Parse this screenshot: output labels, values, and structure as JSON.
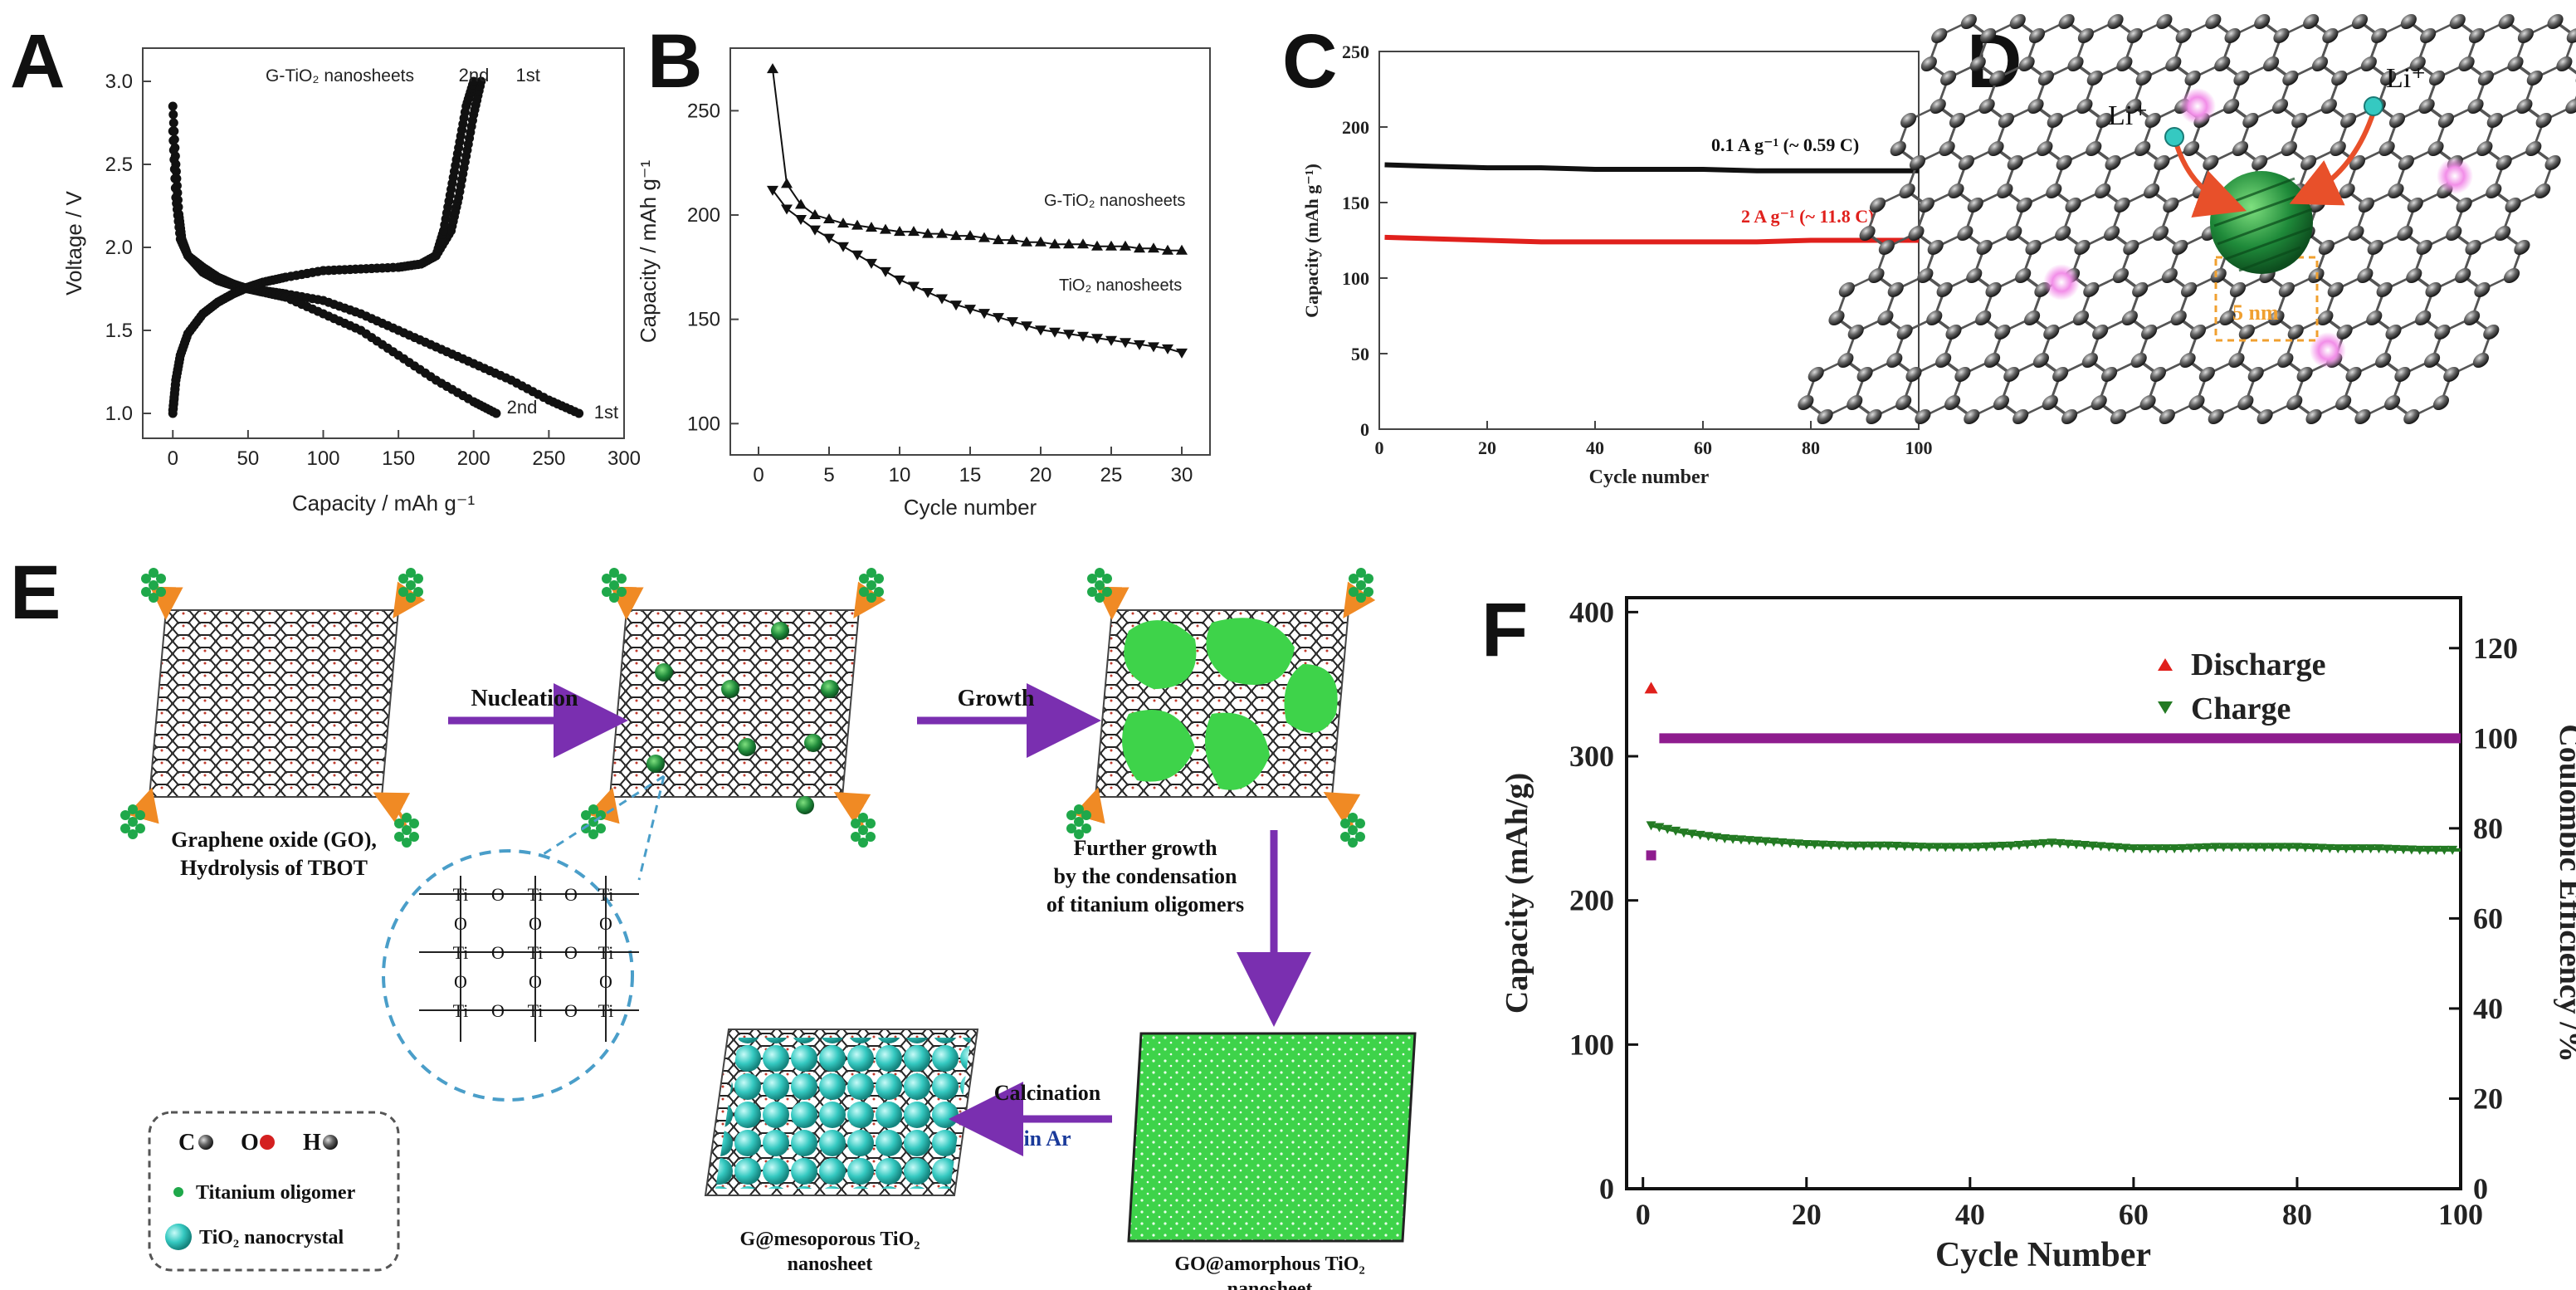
{
  "panels": {
    "A": "A",
    "B": "B",
    "C": "C",
    "D": "D",
    "E": "E",
    "F": "F"
  },
  "chart_data": [
    {
      "id": "A",
      "type": "line",
      "title": "",
      "legend": "G-TiO₂ nanosheets",
      "xlabel": "Capacity / mAh g⁻¹",
      "ylabel": "Voltage / V",
      "xlim": [
        -20,
        300
      ],
      "ylim": [
        0.85,
        3.2
      ],
      "xticks": [
        0,
        50,
        100,
        150,
        200,
        250,
        300
      ],
      "yticks": [
        1.0,
        1.5,
        2.0,
        2.5,
        3.0
      ],
      "ytick_labels": [
        "1.0",
        "1.5",
        "2.0",
        "2.5",
        "3.0"
      ],
      "annotations": [
        {
          "text": "2nd",
          "x": 190,
          "y": 3.0
        },
        {
          "text": "1st",
          "x": 228,
          "y": 3.0
        },
        {
          "text": "2nd",
          "x": 222,
          "y": 1.0
        },
        {
          "text": "1st",
          "x": 280,
          "y": 0.97
        }
      ],
      "series": [
        {
          "name": "1st discharge",
          "x": [
            0,
            2,
            4,
            6,
            10,
            15,
            20,
            30,
            40,
            50,
            60,
            75,
            100,
            125,
            150,
            175,
            200,
            225,
            250,
            270
          ],
          "y": [
            2.85,
            2.5,
            2.2,
            2.05,
            1.95,
            1.9,
            1.85,
            1.8,
            1.77,
            1.75,
            1.74,
            1.72,
            1.68,
            1.6,
            1.5,
            1.4,
            1.3,
            1.2,
            1.08,
            1.0
          ]
        },
        {
          "name": "2nd discharge",
          "x": [
            0,
            2,
            5,
            10,
            20,
            30,
            40,
            50,
            60,
            75,
            100,
            125,
            150,
            175,
            200,
            215
          ],
          "y": [
            2.7,
            2.3,
            2.05,
            1.95,
            1.88,
            1.82,
            1.78,
            1.75,
            1.73,
            1.7,
            1.6,
            1.5,
            1.35,
            1.2,
            1.07,
            1.0
          ]
        },
        {
          "name": "1st charge",
          "x": [
            0,
            2,
            5,
            10,
            20,
            30,
            40,
            50,
            60,
            75,
            100,
            125,
            150,
            165,
            175,
            185,
            190,
            195,
            200,
            205
          ],
          "y": [
            1.0,
            1.2,
            1.35,
            1.48,
            1.6,
            1.67,
            1.72,
            1.76,
            1.79,
            1.82,
            1.86,
            1.87,
            1.88,
            1.9,
            1.95,
            2.1,
            2.3,
            2.55,
            2.8,
            3.0
          ]
        },
        {
          "name": "2nd charge",
          "x": [
            0,
            2,
            5,
            10,
            20,
            30,
            40,
            50,
            60,
            75,
            100,
            125,
            150,
            165,
            175,
            180,
            185,
            190,
            195,
            200
          ],
          "y": [
            1.02,
            1.2,
            1.35,
            1.48,
            1.6,
            1.67,
            1.72,
            1.76,
            1.79,
            1.82,
            1.86,
            1.87,
            1.88,
            1.9,
            1.95,
            2.1,
            2.35,
            2.6,
            2.85,
            3.0
          ]
        }
      ]
    },
    {
      "id": "B",
      "type": "line",
      "title": "",
      "xlabel": "Cycle number",
      "ylabel": "Capacity / mAh g⁻¹",
      "xlim": [
        -2,
        32
      ],
      "ylim": [
        85,
        280
      ],
      "xticks": [
        0,
        5,
        10,
        15,
        20,
        25,
        30
      ],
      "yticks": [
        100,
        150,
        200,
        250
      ],
      "series": [
        {
          "name": "G-TiO₂ nanosheets",
          "x": [
            1,
            2,
            3,
            4,
            5,
            6,
            7,
            8,
            9,
            10,
            11,
            12,
            13,
            14,
            15,
            16,
            17,
            18,
            19,
            20,
            21,
            22,
            23,
            24,
            25,
            26,
            27,
            28,
            29,
            30
          ],
          "y": [
            270,
            215,
            205,
            200,
            198,
            196,
            195,
            194,
            193,
            192,
            192,
            191,
            191,
            190,
            190,
            189,
            188,
            188,
            187,
            187,
            186,
            186,
            186,
            185,
            185,
            185,
            184,
            184,
            183,
            183
          ]
        },
        {
          "name": "TiO₂ nanosheets",
          "x": [
            1,
            2,
            3,
            4,
            5,
            6,
            7,
            8,
            9,
            10,
            11,
            12,
            13,
            14,
            15,
            16,
            17,
            18,
            19,
            20,
            21,
            22,
            23,
            24,
            25,
            26,
            27,
            28,
            29,
            30
          ],
          "y": [
            212,
            203,
            198,
            193,
            189,
            185,
            181,
            177,
            173,
            169,
            166,
            163,
            160,
            157,
            155,
            153,
            151,
            149,
            147,
            145,
            144,
            143,
            142,
            141,
            140,
            139,
            138,
            137,
            136,
            134
          ]
        }
      ]
    },
    {
      "id": "C",
      "type": "line",
      "title": "",
      "xlabel": "Cycle number",
      "ylabel": "Capacity (mAh g⁻¹)",
      "xlim": [
        0,
        100
      ],
      "ylim": [
        0,
        250
      ],
      "xticks": [
        0,
        20,
        40,
        60,
        80,
        100
      ],
      "yticks": [
        0,
        50,
        100,
        150,
        200,
        250
      ],
      "series": [
        {
          "name": "0.1 A g⁻¹ (~ 0.59 C)",
          "color": "#111111",
          "x": [
            1,
            10,
            20,
            30,
            40,
            50,
            60,
            70,
            80,
            90,
            100
          ],
          "y": [
            175,
            174,
            173,
            173,
            172,
            172,
            172,
            171,
            171,
            171,
            171
          ]
        },
        {
          "name": "2 A g⁻¹ (~ 11.8 C)",
          "color": "#e0201c",
          "x": [
            1,
            10,
            20,
            30,
            40,
            50,
            60,
            70,
            80,
            90,
            100
          ],
          "y": [
            127,
            126,
            125,
            124,
            124,
            124,
            124,
            124,
            125,
            125,
            125
          ]
        }
      ]
    },
    {
      "id": "F",
      "type": "scatter",
      "title": "",
      "xlabel": "Cycle Number",
      "ylabel": "Capacity (mAh/g)",
      "y2label": "Coulombic Efficiency /%",
      "xlim": [
        -2,
        100
      ],
      "ylim": [
        0,
        410
      ],
      "y2lim": [
        0,
        131.2
      ],
      "xticks": [
        0,
        20,
        40,
        60,
        80,
        100
      ],
      "yticks": [
        0,
        100,
        200,
        300,
        400
      ],
      "y2ticks": [
        0,
        20,
        40,
        60,
        80,
        100,
        120
      ],
      "legend_position": "top-right",
      "series": [
        {
          "name": "Discharge",
          "marker": "triangle-up",
          "color": "#e0201c",
          "x": [
            1
          ],
          "y": [
            347
          ]
        },
        {
          "name": "Charge",
          "marker": "triangle-down",
          "color": "#237a23",
          "x": [
            1,
            5,
            10,
            15,
            20,
            25,
            30,
            35,
            40,
            45,
            50,
            55,
            60,
            65,
            70,
            75,
            80,
            85,
            90,
            95,
            100
          ],
          "y": [
            252,
            247,
            243,
            241,
            239,
            238,
            238,
            237,
            237,
            238,
            240,
            238,
            236,
            236,
            237,
            237,
            237,
            236,
            236,
            235,
            235
          ]
        },
        {
          "name": "Coulombic Efficiency",
          "axis": "y2",
          "marker": "square",
          "color": "#8e1c8e",
          "x": [
            1,
            2,
            5,
            10,
            20,
            30,
            40,
            50,
            60,
            70,
            80,
            90,
            100
          ],
          "y": [
            74,
            100,
            100,
            100,
            100,
            100,
            100,
            100,
            100,
            100,
            100,
            100,
            100
          ]
        }
      ]
    }
  ],
  "diagram_D": {
    "labels": [
      "Li⁺",
      "Li⁺",
      "5 nm"
    ]
  },
  "diagram_E": {
    "steps": [
      "Nucleation",
      "Growth",
      "Further growth",
      "by the condensation",
      "of titanium oligomers",
      "Calcination",
      "in Ar"
    ],
    "captions": {
      "go": [
        "Graphene oxide (GO),",
        "Hydrolysis of TBOT"
      ],
      "amorphous": [
        "GO@amorphous TiO₂",
        "nanosheet"
      ],
      "mesoporous": [
        "G@mesoporous TiO₂",
        "nanosheet"
      ]
    },
    "legend": {
      "C": "C",
      "O": "O",
      "H": "H",
      "oligomer": "Titanium oligomer",
      "nanocrystal": "TiO₂ nanocrystal"
    },
    "structure_atoms": [
      "Ti",
      "O"
    ]
  },
  "colors": {
    "black": "#111111",
    "red": "#e0201c",
    "green": "#237a23",
    "purple": "#8e1c8e",
    "bright_green": "#3ed34a",
    "teal": "#35c9c1",
    "dashed_blue": "#4a9ec9",
    "arrow_purple": "#7a2fb0"
  }
}
